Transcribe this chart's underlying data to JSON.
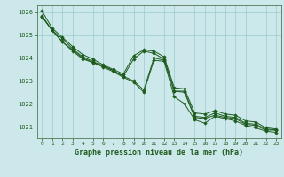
{
  "title": "Graphe pression niveau de la mer (hPa)",
  "bg_color": "#cce8ea",
  "grid_color": "#99cccc",
  "line_color": "#1e5c1e",
  "marker_color": "#1e5c1e",
  "ylim": [
    1020.5,
    1026.3
  ],
  "xlim": [
    -0.5,
    23.5
  ],
  "yticks": [
    1021,
    1022,
    1023,
    1024,
    1025,
    1026
  ],
  "xticks": [
    0,
    1,
    2,
    3,
    4,
    5,
    6,
    7,
    8,
    9,
    10,
    11,
    12,
    13,
    14,
    15,
    16,
    17,
    18,
    19,
    20,
    21,
    22,
    23
  ],
  "series": [
    [
      1025.8,
      1025.2,
      1024.7,
      1024.35,
      1024.0,
      1023.8,
      1023.65,
      1023.45,
      1023.2,
      1023.0,
      1022.6,
      1024.0,
      1023.9,
      1022.55,
      1022.5,
      1021.4,
      1021.35,
      1021.5,
      1021.4,
      1021.35,
      1021.1,
      1021.05,
      1020.85,
      1020.85
    ],
    [
      1025.8,
      1025.2,
      1024.7,
      1024.3,
      1023.95,
      1023.8,
      1023.6,
      1023.4,
      1023.15,
      1022.95,
      1022.5,
      1023.9,
      1023.85,
      1022.3,
      1022.0,
      1021.3,
      1021.15,
      1021.45,
      1021.35,
      1021.25,
      1021.05,
      1020.95,
      1020.8,
      1020.75
    ],
    [
      1025.85,
      1025.2,
      1024.85,
      1024.4,
      1024.05,
      1023.85,
      1023.65,
      1023.45,
      1023.2,
      1023.95,
      1024.3,
      1024.2,
      1023.95,
      1022.55,
      1022.55,
      1021.45,
      1021.4,
      1021.6,
      1021.45,
      1021.4,
      1021.15,
      1021.1,
      1020.9,
      1020.85
    ],
    [
      1026.05,
      1025.3,
      1024.9,
      1024.5,
      1024.15,
      1023.95,
      1023.7,
      1023.5,
      1023.3,
      1024.1,
      1024.35,
      1024.3,
      1024.05,
      1022.7,
      1022.65,
      1021.6,
      1021.55,
      1021.7,
      1021.55,
      1021.5,
      1021.25,
      1021.2,
      1020.95,
      1020.9
    ]
  ]
}
